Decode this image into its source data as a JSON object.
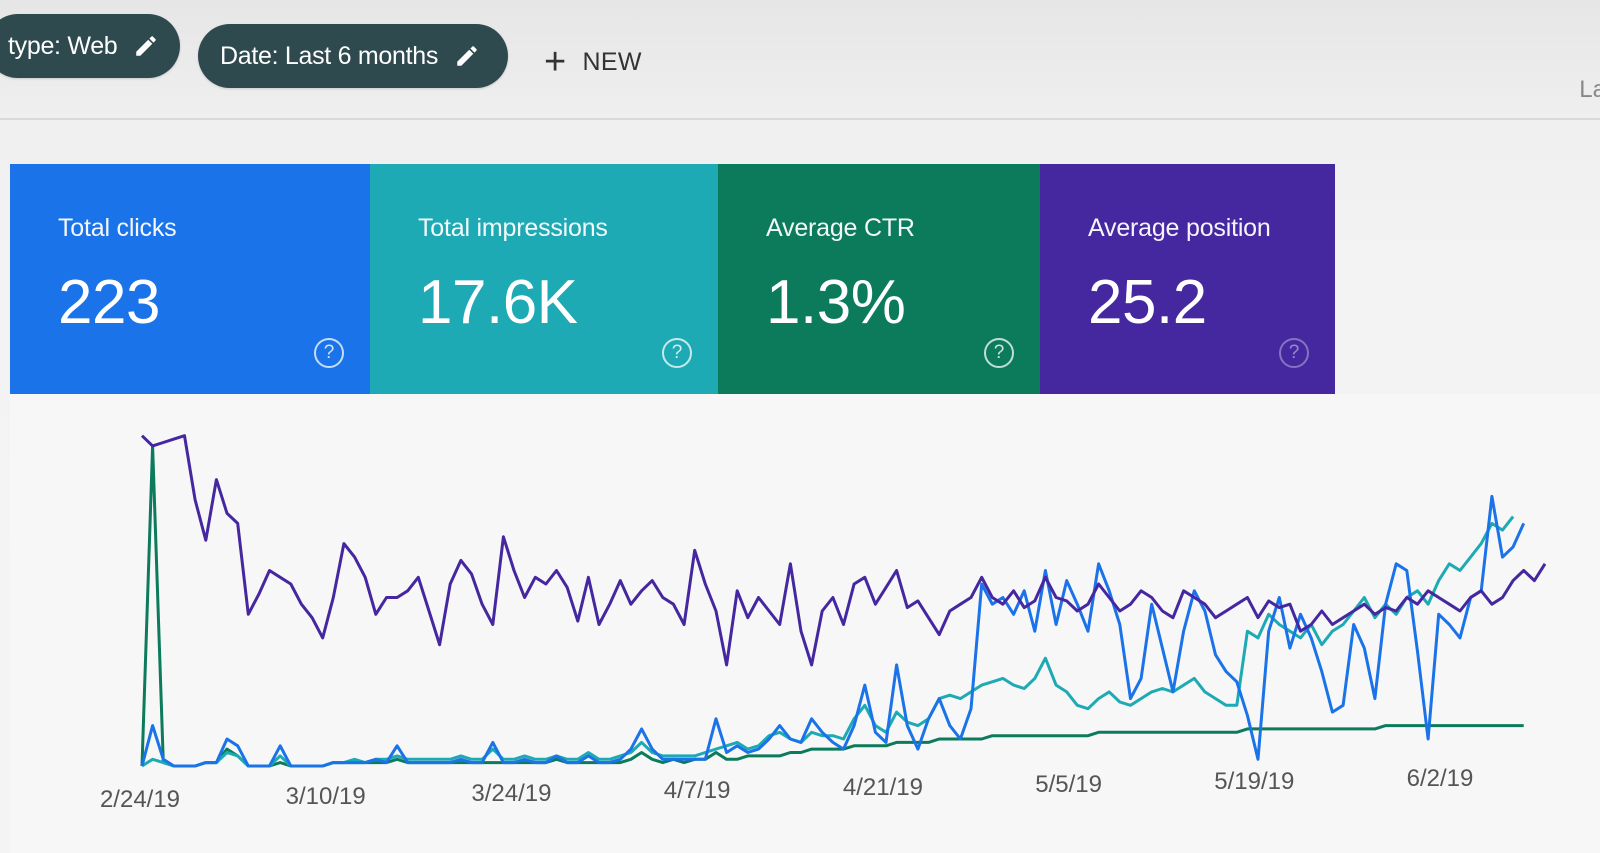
{
  "toolbar": {
    "filter_type_label": "type: Web",
    "filter_date_label": "Date: Last 6 months",
    "new_button_label": "NEW",
    "edge_text": "La"
  },
  "cards": [
    {
      "title": "Total clicks",
      "value": "223",
      "color": "#1a73e8"
    },
    {
      "title": "Total impressions",
      "value": "17.6K",
      "color": "#1eaab4"
    },
    {
      "title": "Average CTR",
      "value": "1.3%",
      "color": "#0b7b5b"
    },
    {
      "title": "Average position",
      "value": "25.2",
      "color": "#4527a0"
    }
  ],
  "chart_data": {
    "type": "line",
    "x_tick_labels": [
      "2/24/19",
      "3/10/19",
      "3/24/19",
      "4/7/19",
      "4/21/19",
      "5/5/19",
      "5/19/19",
      "6/2/19"
    ],
    "series": [
      {
        "color": "#4527a0",
        "values": [
          0.98,
          0.95,
          0.96,
          0.97,
          0.98,
          0.79,
          0.67,
          0.85,
          0.75,
          0.72,
          0.45,
          0.51,
          0.58,
          0.56,
          0.54,
          0.48,
          0.44,
          0.38,
          0.5,
          0.66,
          0.62,
          0.56,
          0.45,
          0.5,
          0.5,
          0.52,
          0.56,
          0.46,
          0.36,
          0.54,
          0.61,
          0.57,
          0.48,
          0.42,
          0.68,
          0.58,
          0.5,
          0.56,
          0.54,
          0.58,
          0.53,
          0.43,
          0.56,
          0.42,
          0.48,
          0.55,
          0.48,
          0.52,
          0.55,
          0.5,
          0.48,
          0.42,
          0.64,
          0.54,
          0.46,
          0.3,
          0.52,
          0.44,
          0.5,
          0.46,
          0.42,
          0.6,
          0.4,
          0.3,
          0.46,
          0.5,
          0.42,
          0.54,
          0.56,
          0.48,
          0.53,
          0.58,
          0.47,
          0.49,
          0.44,
          0.39,
          0.46,
          0.48,
          0.5,
          0.56,
          0.5,
          0.48,
          0.52,
          0.47,
          0.49,
          0.56,
          0.5,
          0.49,
          0.46,
          0.48,
          0.54,
          0.5,
          0.46,
          0.48,
          0.52,
          0.5,
          0.46,
          0.44,
          0.52,
          0.5,
          0.48,
          0.44,
          0.46,
          0.48,
          0.5,
          0.44,
          0.49,
          0.47,
          0.48,
          0.4,
          0.42,
          0.46,
          0.42,
          0.44,
          0.46,
          0.48,
          0.45,
          0.47,
          0.46,
          0.5,
          0.48,
          0.52,
          0.5,
          0.48,
          0.46,
          0.5,
          0.52,
          0.48,
          0.5,
          0.55,
          0.58,
          0.55,
          0.6
        ]
      },
      {
        "color": "#1a73e8",
        "values": [
          0,
          0.12,
          0.02,
          0,
          0,
          0,
          0.01,
          0.01,
          0.08,
          0.06,
          0,
          0,
          0,
          0.06,
          0,
          0,
          0,
          0,
          0.01,
          0.01,
          0.01,
          0.01,
          0.02,
          0.01,
          0.06,
          0.01,
          0.01,
          0.01,
          0.01,
          0.01,
          0.02,
          0.01,
          0.01,
          0.07,
          0.01,
          0.01,
          0.02,
          0.01,
          0.01,
          0.03,
          0.01,
          0.01,
          0.03,
          0.01,
          0.01,
          0.02,
          0.05,
          0.11,
          0.05,
          0.02,
          0.02,
          0.02,
          0.02,
          0.02,
          0.14,
          0.04,
          0.06,
          0.04,
          0.05,
          0.08,
          0.12,
          0.08,
          0.07,
          0.14,
          0.1,
          0.07,
          0.05,
          0.12,
          0.24,
          0.1,
          0.07,
          0.3,
          0.12,
          0.05,
          0.14,
          0.2,
          0.12,
          0.08,
          0.17,
          0.54,
          0.48,
          0.5,
          0.45,
          0.52,
          0.4,
          0.58,
          0.42,
          0.55,
          0.48,
          0.4,
          0.6,
          0.52,
          0.42,
          0.2,
          0.26,
          0.48,
          0.35,
          0.22,
          0.4,
          0.52,
          0.46,
          0.33,
          0.28,
          0.25,
          0.15,
          0.02,
          0.4,
          0.5,
          0.35,
          0.45,
          0.38,
          0.28,
          0.16,
          0.18,
          0.42,
          0.35,
          0.2,
          0.48,
          0.6,
          0.58,
          0.34,
          0.08,
          0.45,
          0.42,
          0.38,
          0.5,
          0.52,
          0.8,
          0.62,
          0.65,
          0.72
        ]
      },
      {
        "color": "#1eaab4",
        "values": [
          0,
          0.02,
          0.01,
          0,
          0,
          0,
          0.01,
          0.01,
          0.04,
          0.03,
          0,
          0,
          0,
          0.03,
          0,
          0,
          0,
          0,
          0.01,
          0.01,
          0.02,
          0.01,
          0.02,
          0.02,
          0.03,
          0.02,
          0.02,
          0.02,
          0.02,
          0.02,
          0.03,
          0.02,
          0.02,
          0.05,
          0.02,
          0.02,
          0.03,
          0.02,
          0.02,
          0.03,
          0.02,
          0.02,
          0.04,
          0.02,
          0.02,
          0.03,
          0.04,
          0.07,
          0.04,
          0.03,
          0.03,
          0.03,
          0.03,
          0.04,
          0.05,
          0.06,
          0.07,
          0.05,
          0.06,
          0.09,
          0.1,
          0.08,
          0.07,
          0.1,
          0.09,
          0.09,
          0.08,
          0.14,
          0.18,
          0.12,
          0.1,
          0.16,
          0.13,
          0.12,
          0.14,
          0.2,
          0.21,
          0.2,
          0.22,
          0.24,
          0.25,
          0.26,
          0.24,
          0.23,
          0.26,
          0.32,
          0.24,
          0.22,
          0.18,
          0.17,
          0.2,
          0.22,
          0.19,
          0.18,
          0.2,
          0.22,
          0.23,
          0.22,
          0.24,
          0.26,
          0.22,
          0.2,
          0.18,
          0.18,
          0.4,
          0.38,
          0.45,
          0.42,
          0.4,
          0.38,
          0.42,
          0.36,
          0.4,
          0.42,
          0.46,
          0.5,
          0.44,
          0.48,
          0.45,
          0.5,
          0.52,
          0.48,
          0.55,
          0.6,
          0.58,
          0.62,
          0.66,
          0.72,
          0.7,
          0.74
        ]
      },
      {
        "color": "#0b7b5b",
        "values": [
          0,
          0.95,
          0.01,
          0,
          0,
          0,
          0.01,
          0.01,
          0.05,
          0.03,
          0,
          0,
          0,
          0.01,
          0,
          0,
          0,
          0,
          0.01,
          0.01,
          0.01,
          0.01,
          0.01,
          0.01,
          0.02,
          0.01,
          0.01,
          0.01,
          0.01,
          0.01,
          0.01,
          0.01,
          0.01,
          0.01,
          0.01,
          0.01,
          0.01,
          0.01,
          0.01,
          0.02,
          0.01,
          0.01,
          0.01,
          0.01,
          0.01,
          0.01,
          0.02,
          0.04,
          0.02,
          0.01,
          0.02,
          0.01,
          0.02,
          0.02,
          0.04,
          0.02,
          0.02,
          0.03,
          0.03,
          0.03,
          0.03,
          0.04,
          0.04,
          0.05,
          0.05,
          0.05,
          0.05,
          0.06,
          0.06,
          0.06,
          0.06,
          0.07,
          0.07,
          0.07,
          0.07,
          0.08,
          0.08,
          0.08,
          0.08,
          0.08,
          0.09,
          0.09,
          0.09,
          0.09,
          0.09,
          0.09,
          0.09,
          0.09,
          0.09,
          0.09,
          0.1,
          0.1,
          0.1,
          0.1,
          0.1,
          0.1,
          0.1,
          0.1,
          0.1,
          0.1,
          0.1,
          0.1,
          0.1,
          0.1,
          0.11,
          0.11,
          0.11,
          0.11,
          0.11,
          0.11,
          0.11,
          0.11,
          0.11,
          0.11,
          0.11,
          0.11,
          0.11,
          0.12,
          0.12,
          0.12,
          0.12,
          0.12,
          0.12,
          0.12,
          0.12,
          0.12,
          0.12,
          0.12,
          0.12,
          0.12,
          0.12
        ]
      }
    ]
  }
}
